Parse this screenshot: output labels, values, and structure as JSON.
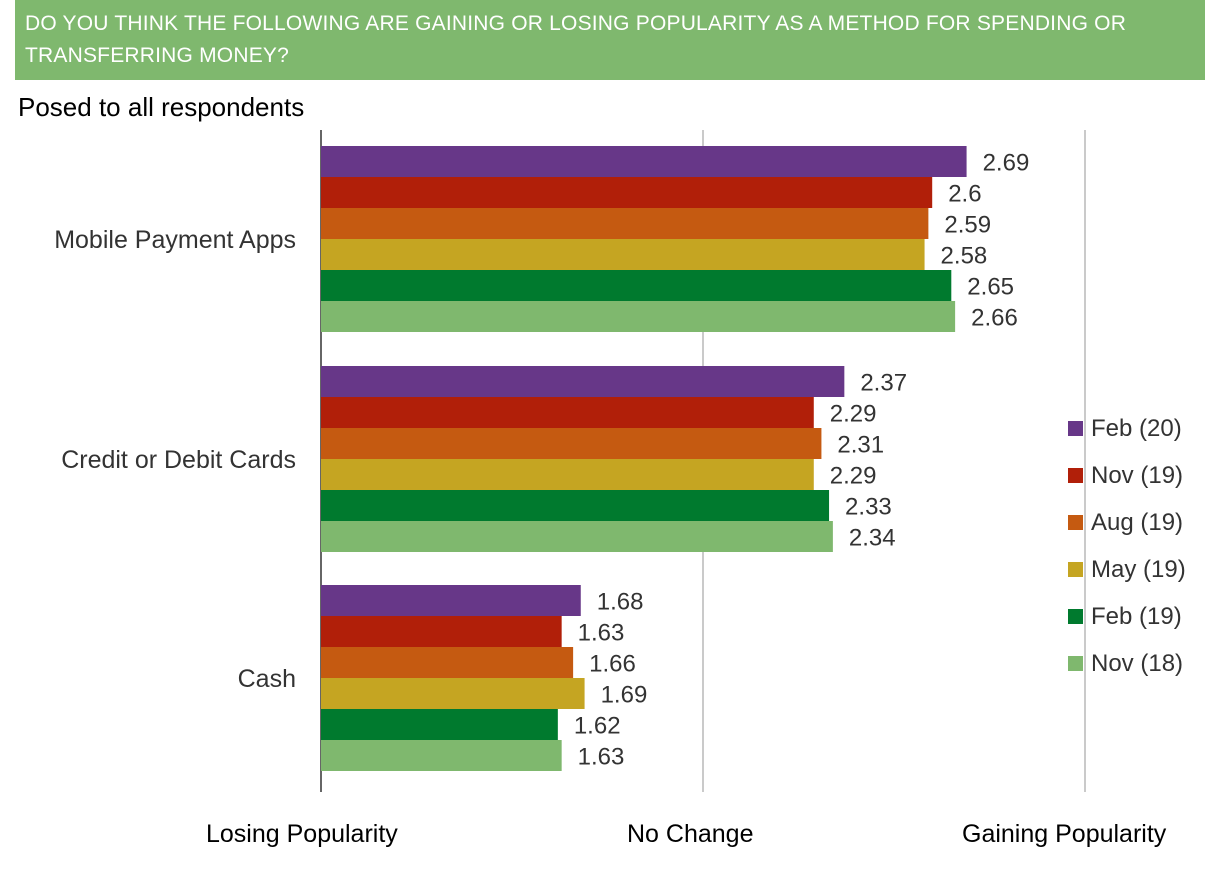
{
  "header": {
    "question": "DO YOU THINK THE FOLLOWING ARE GAINING OR LOSING POPULARITY AS A METHOD FOR SPENDING OR TRANSFERRING MONEY?",
    "subtitle": "Posed to all respondents"
  },
  "x_axis_labels": {
    "low": "Losing Popularity",
    "mid": "No Change",
    "high": "Gaining Popularity"
  },
  "chart_data": {
    "type": "bar",
    "orientation": "horizontal",
    "categories": [
      "Mobile Payment Apps",
      "Credit or Debit Cards",
      "Cash"
    ],
    "xlim": [
      1,
      3
    ],
    "grid": true,
    "legend_position": "right",
    "series": [
      {
        "name": "Feb (20)",
        "color": "#673788",
        "values": [
          2.69,
          2.37,
          1.68
        ]
      },
      {
        "name": "Nov (19)",
        "color": "#b11f09",
        "values": [
          2.6,
          2.29,
          1.63
        ]
      },
      {
        "name": "Aug (19)",
        "color": "#c55a11",
        "values": [
          2.59,
          2.31,
          1.66
        ]
      },
      {
        "name": "May (19)",
        "color": "#c5a522",
        "values": [
          2.58,
          2.29,
          1.69
        ]
      },
      {
        "name": "Feb (19)",
        "color": "#007a2e",
        "values": [
          2.65,
          2.33,
          1.62
        ]
      },
      {
        "name": "Nov (18)",
        "color": "#7fb86e",
        "values": [
          2.66,
          2.34,
          1.63
        ]
      }
    ],
    "value_labels": [
      [
        "2.69",
        "2.37",
        "1.68"
      ],
      [
        "2.6",
        "2.29",
        "1.63"
      ],
      [
        "2.59",
        "2.31",
        "1.66"
      ],
      [
        "2.58",
        "2.29",
        "1.69"
      ],
      [
        "2.65",
        "2.33",
        "1.62"
      ],
      [
        "2.66",
        "2.34",
        "1.63"
      ]
    ]
  }
}
